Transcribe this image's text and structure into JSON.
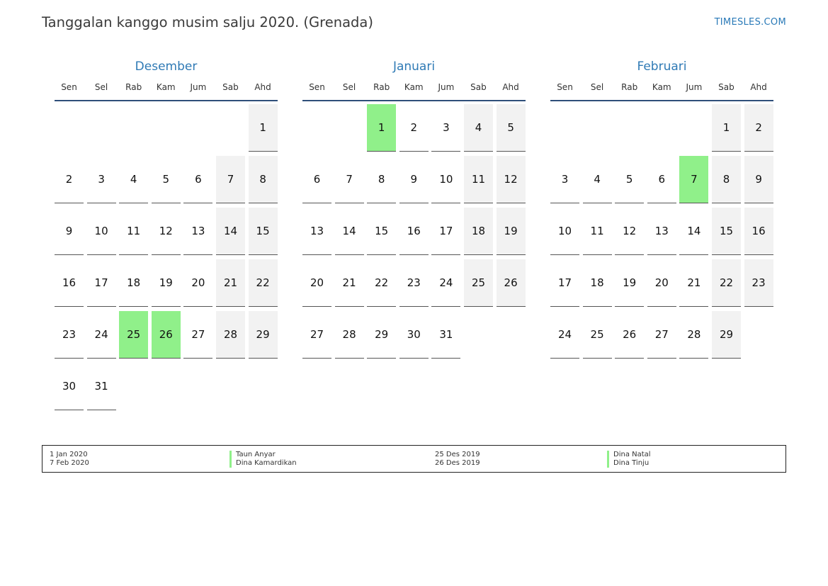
{
  "header": {
    "title": "Tanggalan kanggo musim salju 2020. (Grenada)",
    "site": "TIMESLES.COM"
  },
  "colors": {
    "month_title": "#2f7ab5",
    "holiday": "#90f08a",
    "weekend": "#f2f2f2"
  },
  "months": [
    {
      "name": "Desember",
      "weekdays": [
        "Sen",
        "Sel",
        "Rab",
        "Kam",
        "Jum",
        "Sab",
        "Ahd"
      ],
      "start_offset": 6,
      "days_in_month": 31,
      "holidays": [
        25,
        26
      ]
    },
    {
      "name": "Januari",
      "weekdays": [
        "Sen",
        "Sel",
        "Rab",
        "Kam",
        "Jum",
        "Sab",
        "Ahd"
      ],
      "start_offset": 2,
      "days_in_month": 31,
      "holidays": [
        1
      ]
    },
    {
      "name": "Februari",
      "weekdays": [
        "Sen",
        "Sel",
        "Rab",
        "Kam",
        "Jum",
        "Sab",
        "Ahd"
      ],
      "start_offset": 5,
      "days_in_month": 29,
      "holidays": [
        7
      ]
    }
  ],
  "legend": [
    {
      "date": "1 Jan 2020",
      "name": "Taun Anyar"
    },
    {
      "date": "7 Feb 2020",
      "name": "Dina Kamardikan"
    },
    {
      "date": "25 Des 2019",
      "name": "Dina Natal"
    },
    {
      "date": "26 Des 2019",
      "name": "Dina Tinju"
    }
  ]
}
